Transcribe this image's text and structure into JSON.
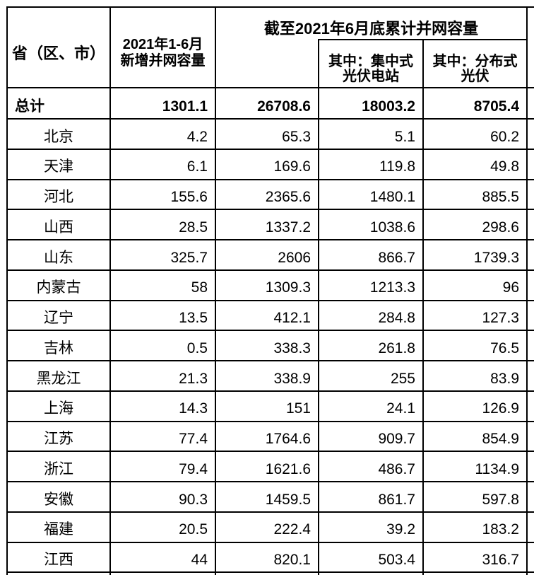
{
  "table": {
    "header": {
      "province": "省（区、市）",
      "new_capacity_line1": "2021年1-6月",
      "new_capacity_line2": "新增并网容量",
      "cumulative_title": "截至2021年6月底累计并网容量",
      "sub_centralized_line1": "其中：集中式",
      "sub_centralized_line2": "光伏电站",
      "sub_distributed_line1": "其中：分布式",
      "sub_distributed_line2": "光伏"
    },
    "total_row": {
      "label": "总计",
      "values": [
        "1301.1",
        "26708.6",
        "18003.2",
        "8705.4"
      ]
    },
    "rows": [
      {
        "province": "北京",
        "values": [
          "4.2",
          "65.3",
          "5.1",
          "60.2"
        ]
      },
      {
        "province": "天津",
        "values": [
          "6.1",
          "169.6",
          "119.8",
          "49.8"
        ]
      },
      {
        "province": "河北",
        "values": [
          "155.6",
          "2365.6",
          "1480.1",
          "885.5"
        ]
      },
      {
        "province": "山西",
        "values": [
          "28.5",
          "1337.2",
          "1038.6",
          "298.6"
        ]
      },
      {
        "province": "山东",
        "values": [
          "325.7",
          "2606",
          "866.7",
          "1739.3"
        ]
      },
      {
        "province": "内蒙古",
        "values": [
          "58",
          "1309.3",
          "1213.3",
          "96"
        ]
      },
      {
        "province": "辽宁",
        "values": [
          "13.5",
          "412.1",
          "284.8",
          "127.3"
        ]
      },
      {
        "province": "吉林",
        "values": [
          "0.5",
          "338.3",
          "261.8",
          "76.5"
        ]
      },
      {
        "province": "黑龙江",
        "values": [
          "21.3",
          "338.9",
          "255",
          "83.9"
        ]
      },
      {
        "province": "上海",
        "values": [
          "14.3",
          "151",
          "24.1",
          "126.9"
        ]
      },
      {
        "province": "江苏",
        "values": [
          "77.4",
          "1764.6",
          "909.7",
          "854.9"
        ]
      },
      {
        "province": "浙江",
        "values": [
          "79.4",
          "1621.6",
          "486.7",
          "1134.9"
        ]
      },
      {
        "province": "安徽",
        "values": [
          "90.3",
          "1459.5",
          "861.7",
          "597.8"
        ]
      },
      {
        "province": "福建",
        "values": [
          "20.5",
          "222.4",
          "39.2",
          "183.2"
        ]
      },
      {
        "province": "江西",
        "values": [
          "44",
          "820.1",
          "503.4",
          "316.7"
        ]
      }
    ]
  },
  "colors": {
    "border": "#000000",
    "text": "#000000",
    "background": "#ffffff"
  }
}
